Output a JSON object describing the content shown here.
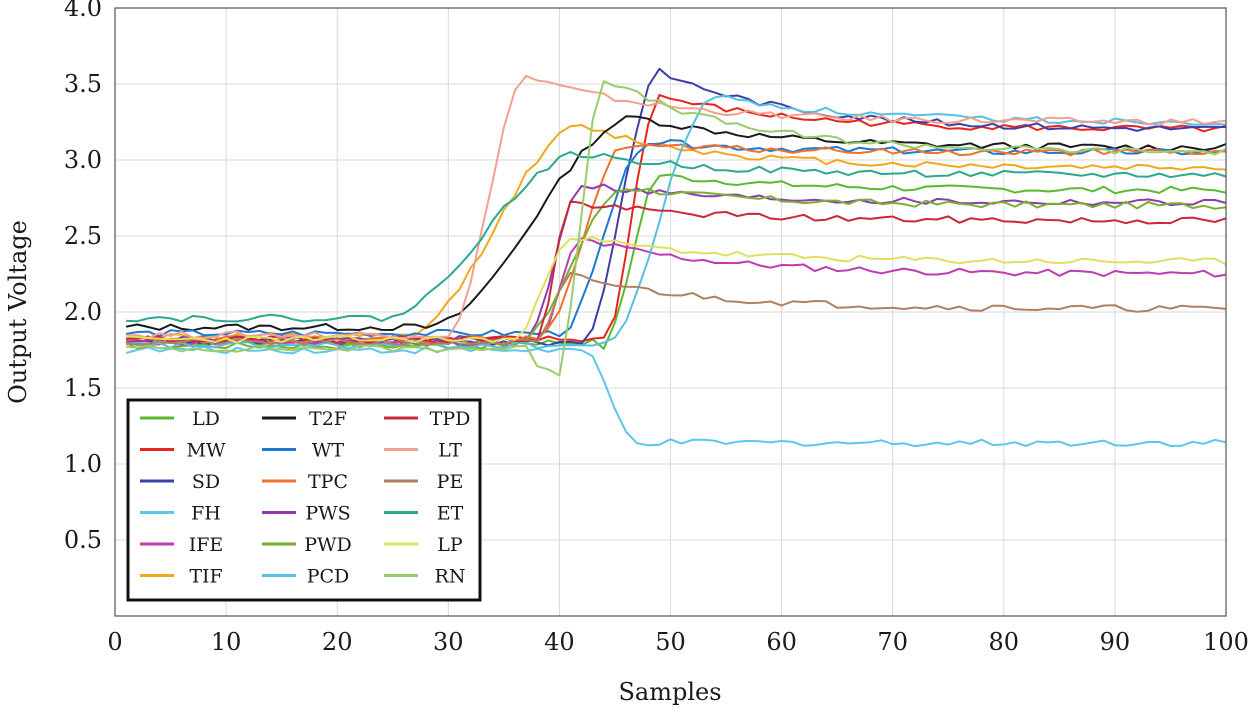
{
  "chart_data": {
    "type": "line",
    "title": "",
    "xlabel": "Samples",
    "ylabel": "Output Voltage",
    "xlim": [
      0,
      100
    ],
    "ylim": [
      0,
      4.0
    ],
    "x_tick_labels": [
      "0",
      "10",
      "20",
      "30",
      "40",
      "50",
      "60",
      "70",
      "80",
      "90",
      "100"
    ],
    "y_tick_labels": [
      "0.5",
      "1.0",
      "1.5",
      "2.0",
      "2.5",
      "3.0",
      "3.5",
      "4.0"
    ],
    "grid": true,
    "legend_position": "bottom-left",
    "series": [
      {
        "name": "LD",
        "color": "#5cb82e",
        "start": 1.8,
        "step_at": 44,
        "rise": 5,
        "end": 2.8,
        "peak": 2.9,
        "dip": 1.74,
        "dip_at": 45
      },
      {
        "name": "MW",
        "color": "#e8251c",
        "start": 1.82,
        "step_at": 44,
        "rise": 5,
        "end": 3.2,
        "peak": 3.42
      },
      {
        "name": "SD",
        "color": "#3c3fa8",
        "start": 1.8,
        "step_at": 42,
        "rise": 7,
        "end": 3.2,
        "peak": 3.58
      },
      {
        "name": "FH",
        "color": "#5bc8e8",
        "start": 1.75,
        "step_at": 42,
        "rise": 5,
        "end": 1.14,
        "peak": 1.14
      },
      {
        "name": "IFE",
        "color": "#c03bb0",
        "start": 1.8,
        "step_at": 38,
        "rise": 4,
        "end": 2.25,
        "peak": 2.48
      },
      {
        "name": "TIF",
        "color": "#f0a820",
        "start": 1.84,
        "step_at": 26,
        "rise": 16,
        "end": 2.95,
        "peak": 3.22
      },
      {
        "name": "T2F",
        "color": "#1a1a1a",
        "start": 1.9,
        "step_at": 28,
        "rise": 19,
        "end": 3.08,
        "peak": 3.28
      },
      {
        "name": "WT",
        "color": "#1f78d1",
        "start": 1.86,
        "step_at": 40,
        "rise": 8,
        "end": 3.05,
        "peak": 3.12
      },
      {
        "name": "TPC",
        "color": "#f07030",
        "start": 1.82,
        "step_at": 38,
        "rise": 8,
        "end": 3.05,
        "peak": 3.1
      },
      {
        "name": "PWS",
        "color": "#8e3ab0",
        "start": 1.82,
        "step_at": 37,
        "rise": 5,
        "end": 2.72,
        "peak": 2.84
      },
      {
        "name": "PWD",
        "color": "#7ab030",
        "start": 1.78,
        "step_at": 36,
        "rise": 10,
        "end": 2.7,
        "peak": 2.82
      },
      {
        "name": "PCD",
        "color": "#55c0e0",
        "start": 1.78,
        "step_at": 44,
        "rise": 10,
        "end": 3.25,
        "peak": 3.42
      },
      {
        "name": "TPD",
        "color": "#c8283c",
        "start": 1.82,
        "step_at": 38,
        "rise": 3,
        "end": 2.6,
        "peak": 2.72
      },
      {
        "name": "LT",
        "color": "#f4a090",
        "start": 1.85,
        "step_at": 30,
        "rise": 7,
        "end": 3.25,
        "peak": 3.55
      },
      {
        "name": "PE",
        "color": "#b08060",
        "start": 1.8,
        "step_at": 38,
        "rise": 3,
        "end": 2.02,
        "peak": 2.24
      },
      {
        "name": "ET",
        "color": "#2aa890",
        "start": 1.96,
        "step_at": 24,
        "rise": 18,
        "end": 2.9,
        "peak": 3.04
      },
      {
        "name": "LP",
        "color": "#e0e060",
        "start": 1.82,
        "step_at": 36,
        "rise": 5,
        "end": 2.33,
        "peak": 2.5
      },
      {
        "name": "RN",
        "color": "#98cc6c",
        "start": 1.76,
        "step_at": 40,
        "rise": 4,
        "end": 3.05,
        "peak": 3.54,
        "dip": 1.6,
        "dip_at": 40
      }
    ]
  }
}
